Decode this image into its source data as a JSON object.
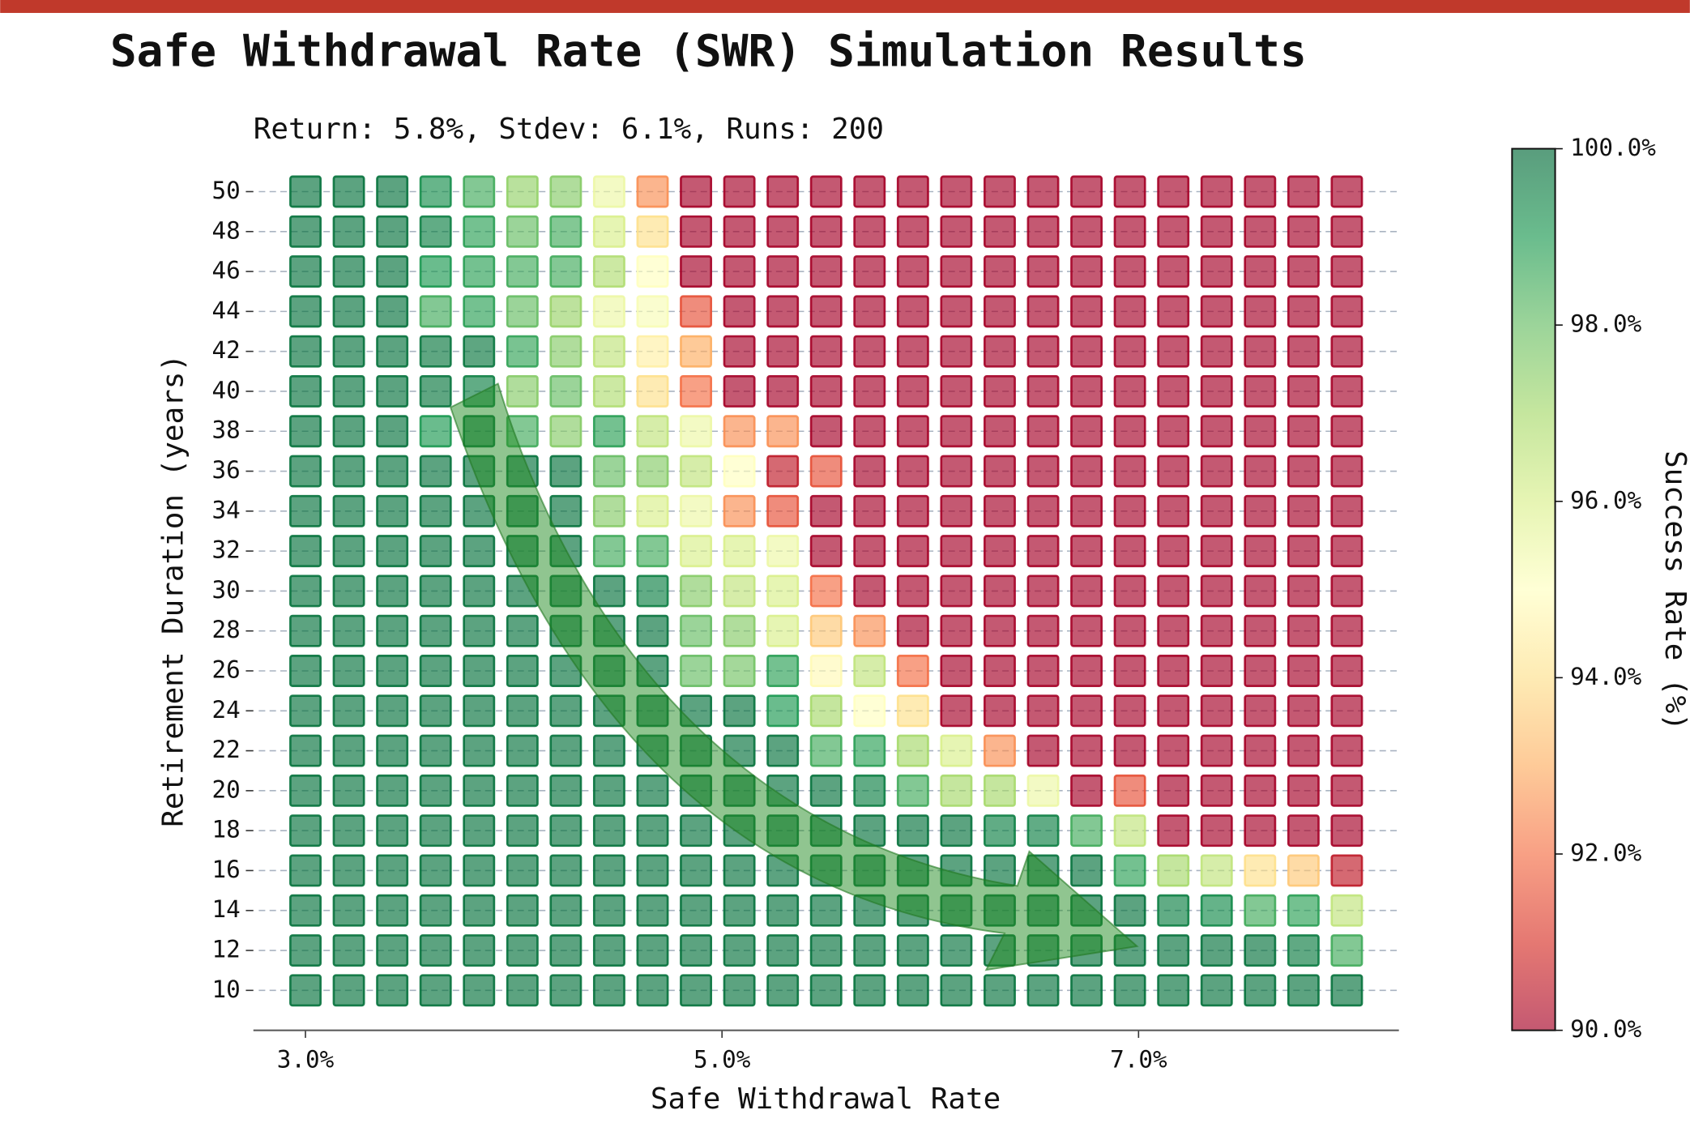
{
  "chart_data": {
    "type": "heatmap",
    "title": "Safe Withdrawal Rate (SWR) Simulation Results",
    "subtitle": "Return: 5.8%, Stdev: 6.1%, Runs: 200",
    "x_label": "Safe Withdrawal Rate",
    "y_label": "Retirement Duration (years)",
    "x": [
      3,
      3.2083,
      3.4167,
      3.625,
      3.8333,
      4.0417,
      4.25,
      4.4583,
      4.6667,
      4.875,
      5.0833,
      5.2917,
      5.5,
      5.7083,
      5.9167,
      6.125,
      6.3333,
      6.5417,
      6.75,
      6.9583,
      7.1667,
      7.375,
      7.5833,
      7.7917,
      8
    ],
    "y": [
      10,
      12,
      14,
      16,
      18,
      20,
      22,
      24,
      26,
      28,
      30,
      32,
      34,
      36,
      38,
      40,
      42,
      44,
      46,
      48,
      50
    ],
    "z": [
      [
        99.8,
        99.8,
        99.8,
        99.8,
        99.8,
        99.8,
        99.8,
        99.8,
        99.8,
        99.8,
        99.8,
        99.8,
        99.8,
        99.8,
        99.8,
        99.8,
        99.8,
        99.8,
        99.8,
        99.8,
        99.8,
        99.8,
        99.8,
        99.8,
        99.8
      ],
      [
        99.8,
        99.8,
        99.8,
        99.8,
        99.8,
        99.8,
        99.8,
        99.8,
        99.8,
        99.8,
        99.8,
        99.8,
        99.8,
        99.8,
        99.8,
        99.8,
        99.8,
        99.8,
        99.8,
        99.8,
        99.8,
        99.8,
        99.8,
        99.6,
        98.5
      ],
      [
        99.8,
        99.8,
        99.8,
        99.8,
        99.8,
        99.8,
        99.8,
        99.8,
        99.8,
        99.8,
        99.8,
        99.8,
        99.8,
        99.8,
        99.8,
        99.8,
        99.8,
        99.8,
        99.8,
        99.8,
        99.5,
        99.3,
        98.5,
        98.8,
        96.5
      ],
      [
        99.8,
        99.8,
        99.8,
        99.8,
        99.8,
        99.8,
        99.8,
        99.8,
        99.8,
        99.8,
        99.8,
        99.8,
        99.8,
        99.8,
        99.8,
        99.8,
        99.8,
        99.8,
        99.8,
        98.8,
        97,
        96.5,
        94,
        93.5,
        90.5
      ],
      [
        99.8,
        99.8,
        99.8,
        99.8,
        99.8,
        99.8,
        99.8,
        99.8,
        99.8,
        99.8,
        99.8,
        99.8,
        99.8,
        99.8,
        99.8,
        99.8,
        99.5,
        99.5,
        98.5,
        96.5,
        90,
        90,
        90,
        90,
        90
      ],
      [
        99.8,
        99.8,
        99.8,
        99.8,
        99.8,
        99.8,
        99.8,
        99.8,
        99.8,
        99.8,
        99.8,
        99.8,
        99.8,
        99.5,
        98.5,
        97,
        97,
        95.5,
        90,
        91.5,
        90,
        90,
        90,
        90,
        90
      ],
      [
        99.8,
        99.8,
        99.8,
        99.8,
        99.8,
        99.8,
        99.8,
        99.8,
        99.8,
        99.8,
        99.8,
        99.8,
        98.5,
        98.8,
        97,
        96,
        92.5,
        90,
        90,
        90,
        90,
        90,
        90,
        90,
        90
      ],
      [
        99.8,
        99.8,
        99.8,
        99.8,
        99.8,
        99.8,
        99.8,
        99.8,
        99.8,
        99.8,
        99.8,
        99,
        97,
        95,
        94,
        90,
        90,
        90,
        90,
        90,
        90,
        90,
        90,
        90,
        90
      ],
      [
        99.8,
        99.8,
        99.8,
        99.8,
        99.8,
        99.8,
        99.8,
        99.8,
        99.8,
        98,
        97.8,
        98.8,
        94.8,
        96.5,
        92,
        90,
        90,
        90,
        90,
        90,
        90,
        90,
        90,
        90,
        90
      ],
      [
        99.8,
        99.8,
        99.8,
        99.8,
        99.8,
        99.8,
        99.8,
        99.8,
        99.8,
        98,
        97.5,
        96,
        93.5,
        92.5,
        90,
        90,
        90,
        90,
        90,
        90,
        90,
        90,
        90,
        90,
        90
      ],
      [
        99.8,
        99.8,
        99.8,
        99.8,
        99.8,
        99.8,
        99.8,
        99.8,
        99.5,
        97.5,
        96.5,
        96,
        92,
        90,
        90,
        90,
        90,
        90,
        90,
        90,
        90,
        90,
        90,
        90,
        90
      ],
      [
        99.8,
        99.8,
        99.8,
        99.8,
        99.8,
        99.8,
        99.8,
        98.5,
        98.5,
        96,
        96,
        95.5,
        90,
        90,
        90,
        90,
        90,
        90,
        90,
        90,
        90,
        90,
        90,
        90,
        90
      ],
      [
        99.8,
        99.8,
        99.8,
        99.8,
        99.8,
        99.8,
        99.8,
        97.5,
        96,
        95.5,
        92.5,
        91.5,
        90,
        90,
        90,
        90,
        90,
        90,
        90,
        90,
        90,
        90,
        90,
        90,
        90
      ],
      [
        99.8,
        99.8,
        99.8,
        99.8,
        99.8,
        99.8,
        99.8,
        98,
        97.5,
        96.5,
        95,
        90.5,
        91.5,
        90,
        90,
        90,
        90,
        90,
        90,
        90,
        90,
        90,
        90,
        90,
        90
      ],
      [
        99.8,
        99.8,
        99.8,
        99,
        99.7,
        98.5,
        97.5,
        98.8,
        96.5,
        95.5,
        92.5,
        92.5,
        90,
        90,
        90,
        90,
        90,
        90,
        90,
        90,
        90,
        90,
        90,
        90,
        90
      ],
      [
        99.8,
        99.8,
        99.8,
        99.7,
        99.5,
        97.5,
        98,
        96.8,
        94,
        92,
        90,
        90,
        90,
        90,
        90,
        90,
        90,
        90,
        90,
        90,
        90,
        90,
        90,
        90,
        90
      ],
      [
        99.8,
        99.8,
        99.8,
        99.7,
        99.7,
        98.7,
        97.5,
        96.5,
        94.5,
        93,
        90,
        90,
        90,
        90,
        90,
        90,
        90,
        90,
        90,
        90,
        90,
        90,
        90,
        90,
        90
      ],
      [
        99.8,
        99.8,
        99.8,
        98.5,
        98.8,
        98,
        97.2,
        95.5,
        95.2,
        91.5,
        90,
        90,
        90,
        90,
        90,
        90,
        90,
        90,
        90,
        90,
        90,
        90,
        90,
        90,
        90
      ],
      [
        99.8,
        99.8,
        99.8,
        99,
        98.8,
        98.5,
        98.5,
        96.8,
        95,
        90,
        90,
        90,
        90,
        90,
        90,
        90,
        90,
        90,
        90,
        90,
        90,
        90,
        90,
        90,
        90
      ],
      [
        99.8,
        99.8,
        99.8,
        99.5,
        98.8,
        98,
        98.5,
        96,
        94,
        90,
        90,
        90,
        90,
        90,
        90,
        90,
        90,
        90,
        90,
        90,
        90,
        90,
        90,
        90,
        90
      ],
      [
        99.8,
        99.8,
        99.8,
        99.2,
        98.5,
        97.3,
        97.5,
        95.5,
        92.5,
        90,
        90,
        90,
        90,
        90,
        90,
        90,
        90,
        90,
        90,
        90,
        90,
        90,
        90,
        90,
        90
      ]
    ],
    "xlim": [
      2.75,
      8.25
    ],
    "ylim": [
      8,
      51.5
    ],
    "xticks": [
      {
        "value": 3,
        "label": "3.0%"
      },
      {
        "value": 5,
        "label": "5.0%"
      },
      {
        "value": 7,
        "label": "7.0%"
      }
    ],
    "yticks": [
      10,
      12,
      14,
      16,
      18,
      20,
      22,
      24,
      26,
      28,
      30,
      32,
      34,
      36,
      38,
      40,
      42,
      44,
      46,
      48,
      50
    ],
    "grid": true,
    "colormap": [
      "#a50026",
      "#d73027",
      "#f46d43",
      "#fdae61",
      "#fee08b",
      "#ffffbf",
      "#d9ef8b",
      "#a6d96a",
      "#66bd63",
      "#1a9850",
      "#006837"
    ],
    "colorbar": {
      "label": "Success Rate (%)",
      "lim": [
        90,
        100
      ],
      "ticks": [
        {
          "value": 90,
          "label": "90.0%"
        },
        {
          "value": 92,
          "label": "92.0%"
        },
        {
          "value": 94,
          "label": "94.0%"
        },
        {
          "value": 96,
          "label": "96.0%"
        },
        {
          "value": 98,
          "label": "98.0%"
        },
        {
          "value": 100,
          "label": "100.0%"
        }
      ]
    }
  }
}
